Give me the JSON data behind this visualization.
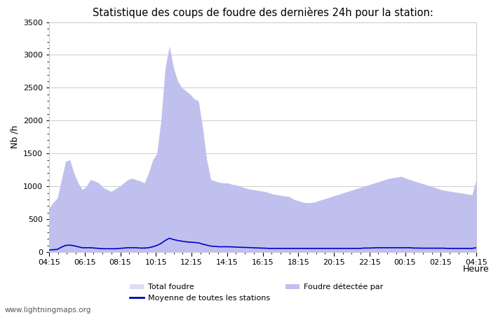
{
  "title": "Statistique des coups de foudre des dernières 24h pour la station:",
  "xlabel": "Heure",
  "ylabel": "Nb /h",
  "ylim": [
    0,
    3500
  ],
  "yticks": [
    0,
    500,
    1000,
    1500,
    2000,
    2500,
    3000,
    3500
  ],
  "xtick_labels": [
    "04:15",
    "06:15",
    "08:15",
    "10:15",
    "12:15",
    "14:15",
    "16:15",
    "18:15",
    "20:15",
    "22:15",
    "00:15",
    "02:15",
    "04:15"
  ],
  "bg_color": "#ffffff",
  "grid_color": "#cccccc",
  "fill_total_color": "#dcdcf5",
  "fill_detected_color": "#c0c0ee",
  "line_color": "#0000cc",
  "watermark": "www.lightningmaps.org",
  "legend_total": "Total foudre",
  "legend_moyenne": "Moyenne de toutes les stations",
  "legend_detected": "Foudre détectée par",
  "total_foudre": [
    670,
    750,
    820,
    1100,
    1380,
    1400,
    1200,
    1050,
    950,
    1000,
    1100,
    1080,
    1050,
    980,
    950,
    920,
    960,
    1000,
    1050,
    1100,
    1120,
    1100,
    1080,
    1050,
    1200,
    1400,
    1500,
    2000,
    2800,
    3130,
    2800,
    2600,
    2500,
    2450,
    2400,
    2330,
    2300,
    1900,
    1400,
    1100,
    1080,
    1060,
    1050,
    1050,
    1030,
    1020,
    1000,
    980,
    960,
    950,
    940,
    930,
    920,
    900,
    880,
    870,
    860,
    850,
    840,
    800,
    780,
    760,
    750,
    750,
    760,
    780,
    800,
    820,
    840,
    860,
    880,
    900,
    920,
    940,
    960,
    980,
    1000,
    1020,
    1040,
    1060,
    1080,
    1100,
    1120,
    1130,
    1140,
    1150,
    1120,
    1100,
    1080,
    1060,
    1040,
    1020,
    1000,
    980,
    960,
    940,
    930,
    920,
    910,
    900,
    890,
    880,
    870,
    1100
  ],
  "foudre_detectee": [
    670,
    750,
    820,
    1100,
    1380,
    1400,
    1200,
    1050,
    950,
    1000,
    1100,
    1080,
    1050,
    980,
    950,
    920,
    960,
    1000,
    1050,
    1100,
    1120,
    1100,
    1080,
    1050,
    1200,
    1400,
    1500,
    2000,
    2800,
    3130,
    2800,
    2600,
    2500,
    2450,
    2400,
    2330,
    2300,
    1900,
    1400,
    1100,
    1080,
    1060,
    1050,
    1050,
    1030,
    1020,
    1000,
    980,
    960,
    950,
    940,
    930,
    920,
    900,
    880,
    870,
    860,
    850,
    840,
    800,
    780,
    760,
    750,
    750,
    760,
    780,
    800,
    820,
    840,
    860,
    880,
    900,
    920,
    940,
    960,
    980,
    1000,
    1020,
    1040,
    1060,
    1080,
    1100,
    1120,
    1130,
    1140,
    1150,
    1120,
    1100,
    1080,
    1060,
    1040,
    1020,
    1000,
    980,
    960,
    940,
    930,
    920,
    910,
    900,
    890,
    880,
    870,
    1100
  ],
  "moyenne": [
    30,
    35,
    40,
    75,
    100,
    105,
    95,
    80,
    65,
    65,
    65,
    60,
    55,
    50,
    50,
    50,
    50,
    55,
    60,
    65,
    65,
    65,
    60,
    60,
    65,
    80,
    100,
    130,
    175,
    210,
    190,
    175,
    165,
    155,
    150,
    145,
    140,
    120,
    105,
    90,
    85,
    80,
    80,
    80,
    78,
    75,
    72,
    70,
    68,
    65,
    62,
    60,
    58,
    55,
    55,
    55,
    55,
    55,
    55,
    55,
    55,
    55,
    55,
    55,
    55,
    55,
    55,
    55,
    55,
    55,
    55,
    55,
    55,
    55,
    55,
    55,
    60,
    60,
    62,
    65,
    65,
    65,
    65,
    65,
    65,
    65,
    65,
    65,
    60,
    60,
    58,
    58,
    58,
    58,
    58,
    58,
    55,
    55,
    55,
    55,
    55,
    55,
    55,
    65
  ]
}
